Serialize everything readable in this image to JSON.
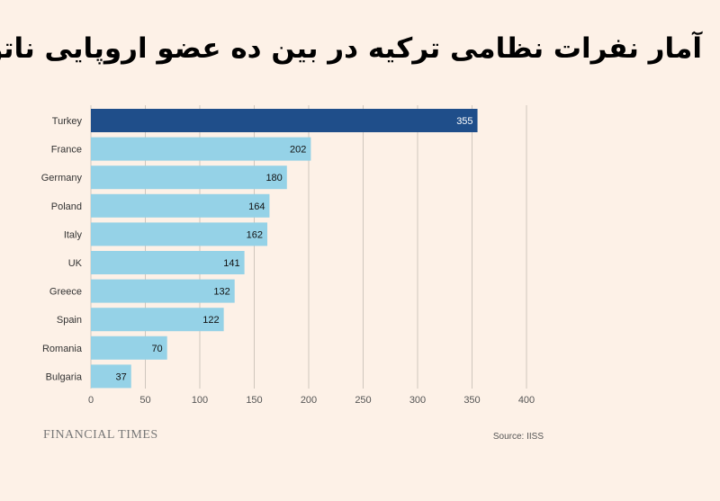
{
  "chart_data": {
    "type": "bar",
    "orientation": "horizontal",
    "title": "آمار نفرات نظامی ترکیه در بین ده عضو اروپایی ناتو",
    "categories": [
      "Turkey",
      "France",
      "Germany",
      "Poland",
      "Italy",
      "UK",
      "Greece",
      "Spain",
      "Romania",
      "Bulgaria"
    ],
    "values": [
      355,
      202,
      180,
      164,
      162,
      141,
      132,
      122,
      70,
      37
    ],
    "xlim": [
      0,
      400
    ],
    "xticks": [
      0,
      50,
      100,
      150,
      200,
      250,
      300,
      350,
      400
    ],
    "xlabel": "",
    "ylabel": "",
    "grid": true,
    "colors": {
      "highlight": "#1f4e8a",
      "bar": "#95d2e7",
      "highlight_label": "#ffffff",
      "bar_label": "#111111",
      "grid": "#cfc6bd"
    }
  },
  "footer": {
    "brand": "FINANCIAL TIMES",
    "source": "Source: IISS"
  }
}
